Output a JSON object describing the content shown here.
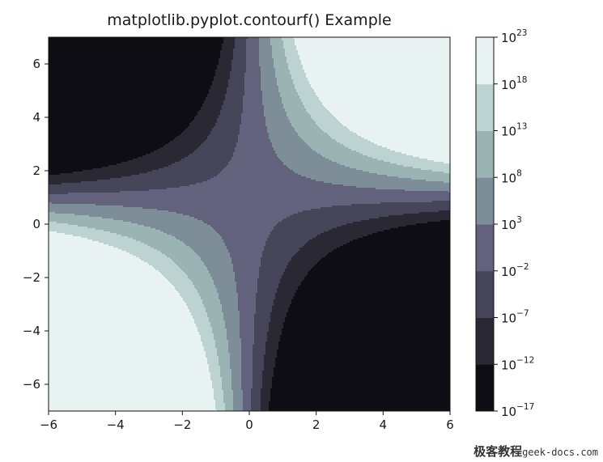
{
  "watermark": {
    "text_cn": "极客教程",
    "text_url": "geek-docs.com"
  },
  "chart_data": {
    "type": "contourf",
    "title": "matplotlib.pyplot.contourf() Example",
    "xlabel": "",
    "ylabel": "",
    "xlim": [
      -6,
      6
    ],
    "ylim": [
      -7,
      7
    ],
    "x_ticks": [
      -6,
      -4,
      -2,
      0,
      2,
      4,
      6
    ],
    "y_ticks": [
      -6,
      -4,
      -2,
      0,
      2,
      4,
      6
    ],
    "function_description_visible": false,
    "colorbar": {
      "scale": "log",
      "levels_exponent": [
        -17,
        -12,
        -7,
        -2,
        3,
        8,
        13,
        18,
        23
      ],
      "tick_base": "10",
      "band_colors": [
        "#0e0d13",
        "#2a2833",
        "#464459",
        "#62627d",
        "#7d8e98",
        "#9cb3b3",
        "#bdd3d1",
        "#e8f2f1"
      ]
    }
  }
}
